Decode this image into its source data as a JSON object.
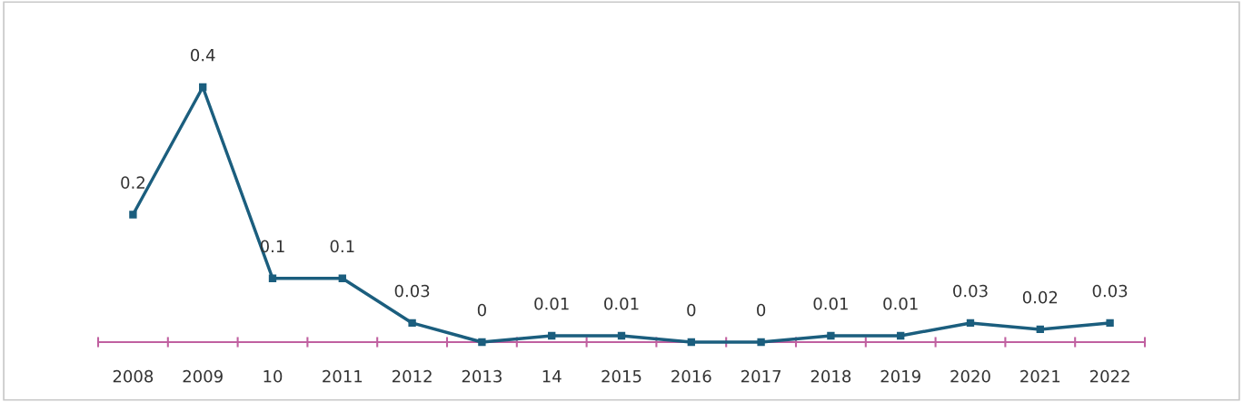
{
  "chart_data": {
    "type": "line",
    "categories": [
      "2008",
      "2009",
      "10",
      "2011",
      "2012",
      "2013",
      "14",
      "2015",
      "2016",
      "2017",
      "2018",
      "2019",
      "2020",
      "2021",
      "2022"
    ],
    "series": [
      {
        "color": "#1b5e7e",
        "values": [
          0.2,
          0.4,
          0.1,
          0.1,
          0.03,
          0,
          0.01,
          0.01,
          0,
          0,
          0.01,
          0.01,
          0.03,
          0.02,
          0.03
        ]
      }
    ],
    "data_labels": true,
    "marker": "square",
    "line_style": "solid",
    "grid": false,
    "legend": false,
    "tick_labels": "x"
  }
}
